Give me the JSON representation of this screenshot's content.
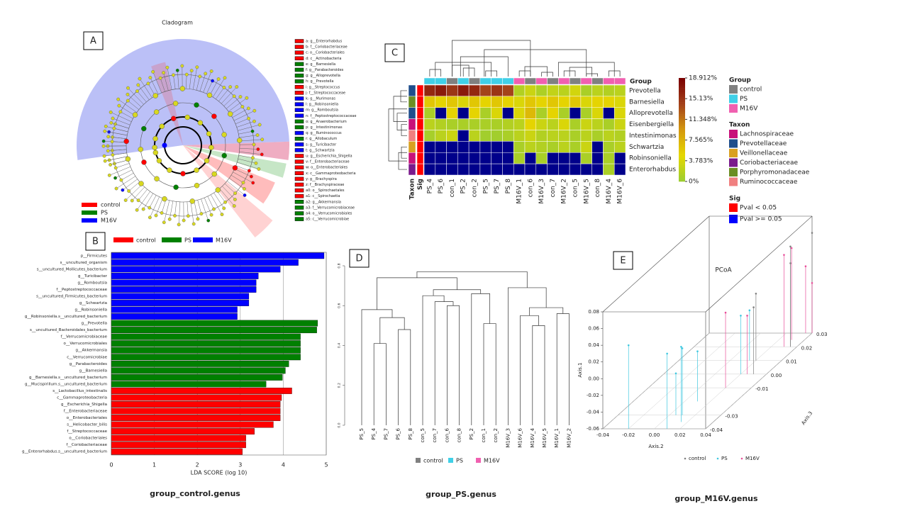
{
  "panel_labels": [
    "A",
    "B",
    "C",
    "D",
    "E"
  ],
  "captions": [
    "group_control.genus",
    "group_PS.genus",
    "group_M16V.genus"
  ],
  "cladogram": {
    "title": "Cladogram",
    "legend": [
      {
        "name": "control",
        "color": "#ff0000"
      },
      {
        "name": "PS",
        "color": "#008000"
      },
      {
        "name": "M16V",
        "color": "#0000ff"
      }
    ],
    "key": [
      {
        "label": "a: g__Enterorhabdus",
        "color": "#ff0000"
      },
      {
        "label": "b: f__Coriobacteriaceae",
        "color": "#ff0000"
      },
      {
        "label": "c: o__Coriobacteriales",
        "color": "#ff0000"
      },
      {
        "label": "d: c__Actinobacteria",
        "color": "#ff0000"
      },
      {
        "label": "e: g__Barnesiella",
        "color": "#008000"
      },
      {
        "label": "f: g__Parabacteroides",
        "color": "#008000"
      },
      {
        "label": "g: g__Alloprevotella",
        "color": "#008000"
      },
      {
        "label": "h: g__Prevotella",
        "color": "#008000"
      },
      {
        "label": "i: g__Streptococcus",
        "color": "#ff0000"
      },
      {
        "label": "j: f__Streptococcaceae",
        "color": "#ff0000"
      },
      {
        "label": "k: g__Murimonas",
        "color": "#0000ff"
      },
      {
        "label": "l: g__Robinsoniella",
        "color": "#0000ff"
      },
      {
        "label": "m: g__Romboutsia",
        "color": "#0000ff"
      },
      {
        "label": "n: f__Peptostreptococcaceae",
        "color": "#0000ff"
      },
      {
        "label": "o: g__Anaerobacterium",
        "color": "#008000"
      },
      {
        "label": "p: g__Intestinimonas",
        "color": "#008000"
      },
      {
        "label": "q: g__Ruminococcus",
        "color": "#0000ff"
      },
      {
        "label": "r: g__Allobaculum",
        "color": "#008000"
      },
      {
        "label": "s: g__Turicibacter",
        "color": "#0000ff"
      },
      {
        "label": "t: g__Schwartzia",
        "color": "#0000ff"
      },
      {
        "label": "u: g__Escherichia_Shigella",
        "color": "#ff0000"
      },
      {
        "label": "v: f__Enterobacteriaceae",
        "color": "#ff0000"
      },
      {
        "label": "w: o__Enterobacteriales",
        "color": "#ff0000"
      },
      {
        "label": "x: c__Gammaproteobacteria",
        "color": "#ff0000"
      },
      {
        "label": "y: g__Brachyspira",
        "color": "#ff0000"
      },
      {
        "label": "z: f__Brachyspiraceae",
        "color": "#ff0000"
      },
      {
        "label": "a0: o__Spirochaetales",
        "color": "#ff0000"
      },
      {
        "label": "a1: c__Spirochaetia",
        "color": "#ff0000"
      },
      {
        "label": "a2: g__Akkermansia",
        "color": "#008000"
      },
      {
        "label": "a3: f__Verrucomicrobiaceae",
        "color": "#008000"
      },
      {
        "label": "a4: o__Verrucomicrobiales",
        "color": "#008000"
      },
      {
        "label": "a5: c__Verrucomicrobiae",
        "color": "#008000"
      }
    ]
  },
  "chart_data": [
    {
      "type": "bar",
      "orientation": "horizontal",
      "xlabel": "LDA SCORE (log 10)",
      "xlim": [
        0,
        5
      ],
      "xticks": [
        0,
        1,
        2,
        3,
        4,
        5
      ],
      "grid": true,
      "series": [
        {
          "name": "control",
          "color": "#ff0000",
          "categories": [
            "s__Lactobacillus_intestinalis",
            "c__Gammaproteobacteria",
            "g__Escherichia_Shigella",
            "f__Enterobacteriaceae",
            "o__Enterobacteriales",
            "s__Helicobacter_bilis",
            "f__Streptococcaceae",
            "o__Coriobacteriales",
            "f__Coriobacteriaceae",
            "g__Enterorhabdus.s__uncultured_bacterium"
          ],
          "values": [
            4.2,
            3.96,
            3.93,
            3.93,
            3.93,
            3.77,
            3.33,
            3.13,
            3.13,
            3.05
          ]
        },
        {
          "name": "PS",
          "color": "#008000",
          "categories": [
            "g__Prevotella",
            "s__uncultured_Bacteroidales_bacterium",
            "f__Verrucomicrobiaceae",
            "o__Verrucomicrobiales",
            "g__Akkermansia",
            "c__Verrucomicrobiae",
            "g__Parabacteroides",
            "g__Barnesiella",
            "g__Barnesiella.s__uncultured_bacterium",
            "g__Mucispirillum.s__uncultured_bacterium"
          ],
          "values": [
            4.8,
            4.78,
            4.4,
            4.4,
            4.4,
            4.4,
            4.13,
            4.05,
            3.98,
            3.6
          ]
        },
        {
          "name": "M16V",
          "color": "#0000ff",
          "categories": [
            "p__Firmicutes",
            "s__uncultured_organism",
            "s__uncultured_Mollicutes_bacterium",
            "g__Turicibacter",
            "g__Romboutsia",
            "f__Peptostreptococcaceae",
            "s__uncultured_Firmicutes_bacterium",
            "g__Schwartzia",
            "g__Robinsoniella",
            "g__Robinsoniella.s__uncultured_bacterium"
          ],
          "values": [
            4.95,
            4.35,
            3.93,
            3.42,
            3.37,
            3.37,
            3.2,
            3.2,
            2.93,
            2.93
          ]
        }
      ]
    },
    {
      "type": "heatmap",
      "columns": [
        "PS_4",
        "PS_6",
        "con_1",
        "PS_2",
        "con_2",
        "PS_5",
        "PS_7",
        "PS_8",
        "M16V_1",
        "con_6",
        "M16V_3",
        "con_7",
        "M16V_2",
        "con_5",
        "M16V_5",
        "con_8",
        "M16V_4",
        "M16V_6"
      ],
      "column_groups": [
        "PS",
        "PS",
        "control",
        "PS",
        "control",
        "PS",
        "PS",
        "PS",
        "M16V",
        "control",
        "M16V",
        "control",
        "M16V",
        "control",
        "M16V",
        "control",
        "M16V",
        "M16V"
      ],
      "rows": [
        "Prevotella",
        "Barnesiella",
        "Alloprevotella",
        "Eisenbergiella",
        "Intestinimonas",
        "Schwartzia",
        "Robinsoniella",
        "Enterorhabdus"
      ],
      "row_taxa": [
        "Prevotellaceae",
        "Porphyromonadaceae",
        "Prevotellaceae",
        "Lachnospiraceae",
        "Ruminococcaceae",
        "Veillonellaceae",
        "Lachnospiraceae",
        "Coriobacteriaceae"
      ],
      "row_sig": [
        "Pval < 0.05",
        "Pval < 0.05",
        "Pval < 0.05",
        "Pval < 0.05",
        "Pval < 0.05",
        "Pval < 0.05",
        "Pval < 0.05",
        "Pval < 0.05"
      ],
      "values": [
        [
          16,
          17,
          15,
          17,
          16,
          14,
          15,
          14,
          1.5,
          3,
          1.2,
          2.5,
          2,
          3.5,
          1,
          2,
          1.5,
          2
        ],
        [
          6,
          5,
          6,
          4,
          6,
          5,
          6,
          5,
          4,
          6,
          5,
          6,
          5,
          6,
          4,
          5,
          5,
          4
        ],
        [
          1,
          0,
          5,
          0,
          5,
          1,
          4,
          0,
          4,
          7,
          1,
          5,
          1,
          0,
          1,
          4,
          0,
          4
        ],
        [
          2,
          1.5,
          1,
          1,
          1,
          1,
          1,
          1.5,
          2,
          5,
          3,
          2,
          4,
          1,
          3,
          2,
          1,
          3
        ],
        [
          0.8,
          2,
          3,
          0,
          2,
          0.5,
          0.5,
          1,
          2,
          3,
          1.5,
          2,
          2,
          1,
          2,
          1,
          2,
          1.5
        ],
        [
          0,
          0,
          0,
          0,
          0,
          0,
          0,
          0,
          1,
          2,
          1.5,
          1,
          2,
          1,
          3,
          0,
          1,
          2
        ],
        [
          0,
          0,
          0,
          0,
          0,
          0,
          0,
          0,
          1,
          0,
          1,
          0,
          0,
          0,
          1,
          0,
          1,
          0
        ],
        [
          0,
          0,
          0,
          0,
          0,
          0,
          0,
          0,
          0,
          0,
          0,
          0,
          0,
          0,
          0,
          0,
          1,
          0
        ]
      ],
      "zlim": [
        0,
        18.912
      ],
      "zticks": [
        {
          "value": 18.912,
          "label": "18.912%"
        },
        {
          "value": 15.13,
          "label": "15.13%"
        },
        {
          "value": 11.348,
          "label": "11.348%"
        },
        {
          "value": 7.565,
          "label": "7.565%"
        },
        {
          "value": 3.783,
          "label": "3.783%"
        },
        {
          "value": 0,
          "label": "0%"
        }
      ],
      "colorscale": [
        "#9acd32",
        "#e6d800",
        "#d4980e",
        "#a2401a",
        "#7a0000"
      ],
      "zero_color": "#00008b",
      "track_labels": [
        "Taxon",
        "Sig"
      ],
      "group_legend": {
        "title": "Group",
        "items": [
          {
            "name": "control",
            "color": "#808080"
          },
          {
            "name": "PS",
            "color": "#40d0e8"
          },
          {
            "name": "M16V",
            "color": "#f060b0"
          }
        ]
      },
      "taxon_legend": {
        "title": "Taxon",
        "items": [
          {
            "name": "Lachnospiraceae",
            "color": "#c8107a"
          },
          {
            "name": "Prevotellaceae",
            "color": "#1f4e8c"
          },
          {
            "name": "Veillonellaceae",
            "color": "#d9a020"
          },
          {
            "name": "Coriobacteriaceae",
            "color": "#7a1a8c"
          },
          {
            "name": "Porphyromonadaceae",
            "color": "#6b8e23"
          },
          {
            "name": "Ruminococcaceae",
            "color": "#f08080"
          }
        ]
      },
      "sig_legend": {
        "title": "Sig",
        "items": [
          {
            "name": "Pval < 0.05",
            "color": "#ff0000"
          },
          {
            "name": "Pval >= 0.05",
            "color": "#0000ff"
          }
        ]
      }
    }
  ],
  "dendrogram": {
    "labels": [
      "PS_5",
      "PS_4",
      "PS_7",
      "PS_6",
      "PS_8",
      "con_5",
      "con_7",
      "con_6",
      "con_8",
      "PS_2",
      "con_1",
      "con_2",
      "M16V_3",
      "M16V_6",
      "M16V_4",
      "M16V_5",
      "M16V_1",
      "M16V_2"
    ],
    "label_groups": [
      "PS",
      "PS",
      "PS",
      "PS",
      "PS",
      "control",
      "control",
      "control",
      "control",
      "PS",
      "control",
      "control",
      "M16V",
      "M16V",
      "M16V",
      "M16V",
      "M16V",
      "M16V"
    ],
    "ylim": [
      0,
      0.8
    ],
    "yticks": [
      {
        "value": 0,
        "label": "0.0"
      },
      0.2,
      0.4,
      0.6,
      0.8
    ],
    "legend": [
      {
        "name": "control",
        "color": "#808080"
      },
      {
        "name": "PS",
        "color": "#40d0e8"
      },
      {
        "name": "M16V",
        "color": "#f060b0"
      }
    ]
  },
  "pcoa": {
    "type": "scatter3d",
    "title": "PCoA",
    "xlabel": "Axis.2",
    "ylabel": "Axis.1",
    "zlabel": "Axis.3",
    "xlim": [
      -0.04,
      0.04
    ],
    "ylim": [
      -0.06,
      0.08
    ],
    "zlim": [
      -0.04,
      0.03
    ],
    "xticks": [
      -0.04,
      -0.02,
      {
        "value": 0,
        "label": "0.00"
      },
      0.02,
      0.04
    ],
    "yticks": [
      -0.06,
      -0.04,
      -0.02,
      {
        "value": 0,
        "label": "0.00"
      },
      0.02,
      0.04,
      0.06,
      0.08
    ],
    "zticks": [
      -0.04,
      -0.03,
      -0.01,
      {
        "value": 0,
        "label": "0.00"
      },
      0.01,
      0.02,
      0.03
    ],
    "series": [
      {
        "name": "control",
        "color": "#808080",
        "x": [
          0.03,
          0.035,
          0.04,
          0.02,
          0.035
        ],
        "y": [
          0.02,
          0.06,
          0.06,
          0.02,
          0.04
        ],
        "z": [
          0,
          0.02,
          0.03,
          0.01,
          0.02
        ]
      },
      {
        "name": "PS",
        "color": "#40c8e0",
        "x": [
          -0.02,
          0.01,
          0.015,
          0.01,
          0.005,
          0.01,
          0.02,
          0.015
        ],
        "y": [
          0.04,
          0.03,
          0.03,
          0.02,
          -0.01,
          0,
          0.01,
          0
        ],
        "z": [
          -0.04,
          -0.04,
          -0.035,
          -0.03,
          -0.03,
          -0.02,
          0,
          0.01
        ]
      },
      {
        "name": "M16V",
        "color": "#e8509a",
        "x": [
          0.02,
          0.025,
          0.03,
          0.03,
          0.035,
          0.04
        ],
        "y": [
          0.03,
          0.01,
          0.05,
          0.05,
          0.02,
          0
        ],
        "z": [
          -0.01,
          0,
          0.02,
          0.025,
          0.03,
          0.03
        ]
      }
    ]
  }
}
